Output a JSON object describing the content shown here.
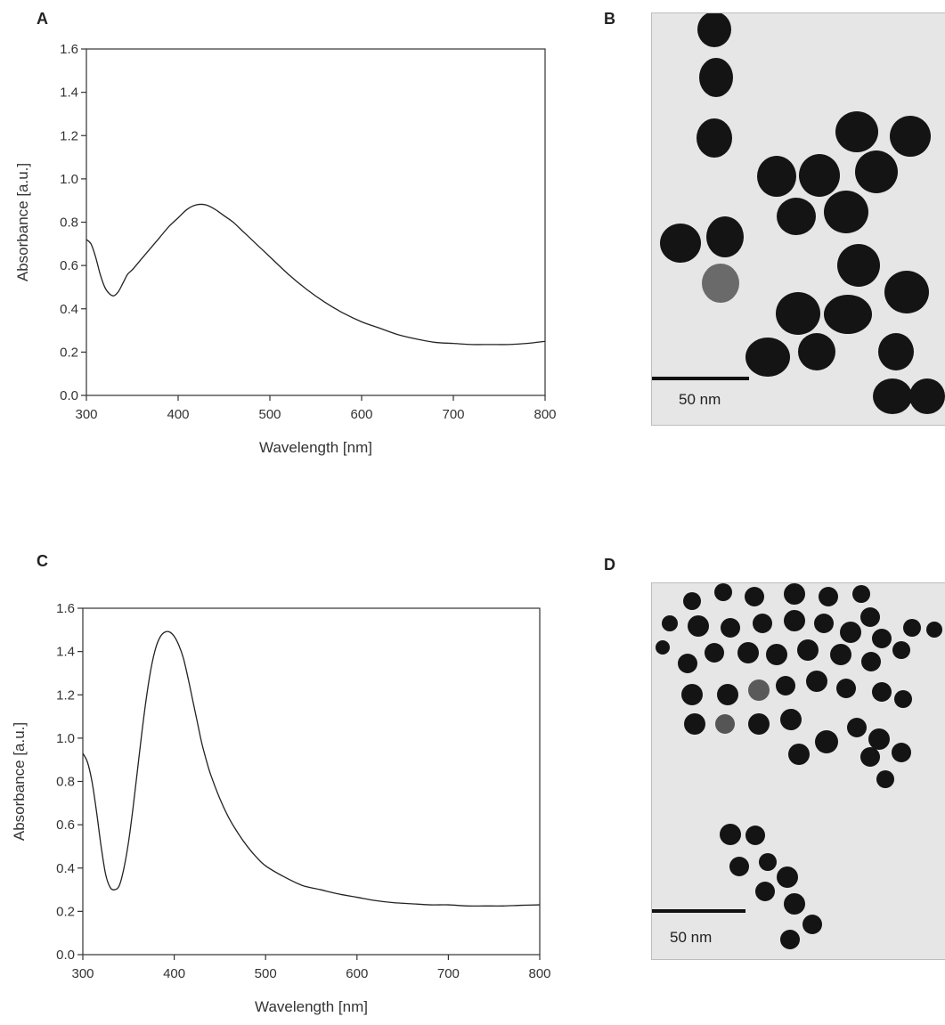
{
  "panels": {
    "a": "A",
    "b": "B",
    "c": "C",
    "d": "D"
  },
  "micrographs": {
    "b_scale": "50 nm",
    "d_scale": "50 nm",
    "background_color": "#e6e6e6",
    "particle_color": "#141414"
  },
  "chart_data": [
    {
      "type": "line",
      "panel": "A",
      "xlabel": "Wavelength [nm]",
      "ylabel": "Absorbance [a.u.]",
      "xlim": [
        300,
        800
      ],
      "ylim": [
        0.0,
        1.6
      ],
      "xticks": [
        300,
        400,
        500,
        600,
        700,
        800
      ],
      "yticks": [
        "0.0",
        "0.2",
        "0.4",
        "0.6",
        "0.8",
        "1.0",
        "1.2",
        "1.4",
        "1.6"
      ],
      "grid": false,
      "series": [
        {
          "x": [
            300,
            305,
            310,
            315,
            320,
            325,
            330,
            335,
            340,
            345,
            350,
            360,
            370,
            380,
            390,
            400,
            410,
            420,
            430,
            440,
            450,
            460,
            470,
            480,
            490,
            500,
            520,
            540,
            560,
            580,
            600,
            620,
            640,
            660,
            680,
            700,
            720,
            740,
            760,
            780,
            800
          ],
          "y": [
            0.72,
            0.7,
            0.64,
            0.56,
            0.5,
            0.47,
            0.46,
            0.48,
            0.52,
            0.56,
            0.58,
            0.63,
            0.68,
            0.73,
            0.78,
            0.82,
            0.86,
            0.88,
            0.88,
            0.86,
            0.83,
            0.8,
            0.76,
            0.72,
            0.68,
            0.64,
            0.56,
            0.49,
            0.43,
            0.38,
            0.34,
            0.31,
            0.28,
            0.26,
            0.245,
            0.24,
            0.235,
            0.235,
            0.235,
            0.24,
            0.25
          ]
        }
      ]
    },
    {
      "type": "line",
      "panel": "C",
      "xlabel": "Wavelength [nm]",
      "ylabel": "Absorbance [a.u.]",
      "xlim": [
        300,
        800
      ],
      "ylim": [
        0.0,
        1.6
      ],
      "xticks": [
        300,
        400,
        500,
        600,
        700,
        800
      ],
      "yticks": [
        "0.0",
        "0.2",
        "0.4",
        "0.6",
        "0.8",
        "1.0",
        "1.2",
        "1.4",
        "1.6"
      ],
      "grid": false,
      "series": [
        {
          "x": [
            300,
            305,
            310,
            315,
            320,
            325,
            330,
            335,
            340,
            345,
            350,
            355,
            360,
            365,
            370,
            375,
            380,
            385,
            390,
            395,
            400,
            405,
            410,
            415,
            420,
            425,
            430,
            435,
            440,
            450,
            460,
            470,
            480,
            490,
            500,
            520,
            540,
            560,
            580,
            600,
            620,
            640,
            660,
            680,
            700,
            720,
            740,
            760,
            780,
            800
          ],
          "y": [
            0.93,
            0.89,
            0.8,
            0.66,
            0.5,
            0.37,
            0.31,
            0.3,
            0.32,
            0.4,
            0.52,
            0.68,
            0.86,
            1.04,
            1.2,
            1.33,
            1.42,
            1.47,
            1.49,
            1.49,
            1.47,
            1.43,
            1.37,
            1.28,
            1.18,
            1.08,
            0.98,
            0.9,
            0.83,
            0.72,
            0.63,
            0.56,
            0.5,
            0.45,
            0.41,
            0.36,
            0.32,
            0.3,
            0.28,
            0.265,
            0.25,
            0.24,
            0.235,
            0.23,
            0.23,
            0.225,
            0.225,
            0.225,
            0.228,
            0.23
          ]
        }
      ]
    }
  ]
}
